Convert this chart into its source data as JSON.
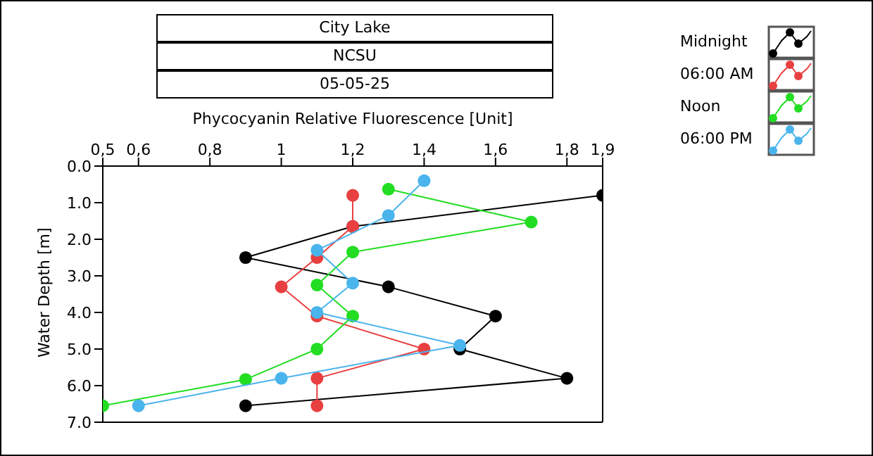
{
  "chart_data": {
    "type": "line",
    "title": "City Lake",
    "subtitle": "NCSU",
    "annotations": [
      "05-05-25"
    ],
    "xlabel": "Phycocyanin Relative Fluorescence [Unit]",
    "ylabel": "Water Depth [m]",
    "xlim": [
      0.5,
      1.9
    ],
    "xticks": [
      {
        "value": 0.5,
        "label": "0,5"
      },
      {
        "value": 0.6,
        "label": "0,6"
      },
      {
        "value": 0.8,
        "label": "0,8"
      },
      1,
      {
        "value": 1.2,
        "label": "1,2"
      },
      {
        "value": 1.4,
        "label": "1,4"
      },
      {
        "value": 1.6,
        "label": "1,6"
      },
      {
        "value": 1.8,
        "label": "1,8"
      },
      {
        "value": 1.9,
        "label": "1,9"
      }
    ],
    "ylim": [
      7,
      0
    ],
    "yticks": [
      {
        "value": 0,
        "label": "0.0"
      },
      {
        "value": 1,
        "label": "1.0"
      },
      {
        "value": 2,
        "label": "2.0"
      },
      {
        "value": 3,
        "label": "3.0"
      },
      {
        "value": 4,
        "label": "4.0"
      },
      {
        "value": 5,
        "label": "5.0"
      },
      {
        "value": 6,
        "label": "6.0"
      },
      {
        "value": 7,
        "label": "7.0"
      }
    ],
    "legend": "top right",
    "marker": "circle",
    "series": [
      {
        "name": "Midnight",
        "color": "#000000",
        "x": [
          1.9,
          1.2,
          0.9,
          1.3,
          1.6,
          1.5,
          1.8,
          0.9
        ],
        "values": [
          0.8,
          1.65,
          2.5,
          3.3,
          4.1,
          5.0,
          5.8,
          6.55
        ]
      },
      {
        "name": "06:00 AM",
        "color": "#e84040",
        "x": [
          1.2,
          1.2,
          1.1,
          1.0,
          1.1,
          1.4,
          1.1,
          1.1
        ],
        "values": [
          0.8,
          1.65,
          2.5,
          3.3,
          4.1,
          5.0,
          5.8,
          6.55
        ]
      },
      {
        "name": "Noon",
        "color": "#22dd22",
        "x": [
          1.3,
          1.7,
          1.2,
          1.1,
          1.2,
          1.1,
          0.9,
          0.5
        ],
        "values": [
          0.63,
          1.53,
          2.35,
          3.25,
          4.1,
          5.0,
          5.83,
          6.55
        ]
      },
      {
        "name": "06:00 PM",
        "color": "#4ab4ec",
        "x": [
          1.4,
          1.3,
          1.1,
          1.2,
          1.1,
          1.5,
          1.0,
          0.6
        ],
        "values": [
          0.4,
          1.35,
          2.3,
          3.2,
          4.0,
          4.9,
          5.8,
          6.55
        ]
      }
    ]
  }
}
